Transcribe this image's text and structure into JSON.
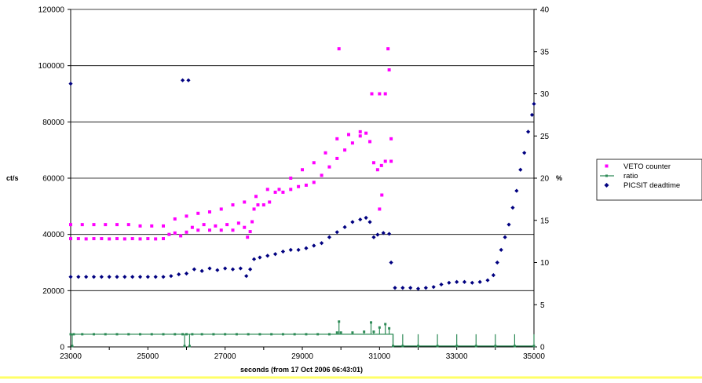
{
  "chart_data": {
    "type": "scatter",
    "title": "",
    "xlabel": "seconds (from 17 Oct 2006 06:43:01)",
    "ylabel_left": "ct/s",
    "ylabel_right": "%",
    "xlim": [
      23000,
      35000
    ],
    "ylim_left": [
      0,
      120000
    ],
    "ylim_right": [
      0,
      40
    ],
    "x_ticks": [
      23000,
      25000,
      27000,
      29000,
      31000,
      33000,
      35000
    ],
    "y_left_ticks": [
      0,
      20000,
      40000,
      60000,
      80000,
      100000,
      120000
    ],
    "y_right_ticks": [
      0,
      5,
      10,
      15,
      20,
      25,
      30,
      35,
      40
    ],
    "grid": "horizontal major gridlines",
    "legend_position": "right",
    "series": [
      {
        "name": "VETO counter",
        "axis": "left",
        "color": "#ff00ff",
        "marker": "square",
        "points": [
          [
            23000,
            38500
          ],
          [
            23200,
            38500
          ],
          [
            23400,
            38400
          ],
          [
            23600,
            38500
          ],
          [
            23800,
            38500
          ],
          [
            24000,
            38400
          ],
          [
            24200,
            38500
          ],
          [
            24400,
            38400
          ],
          [
            24600,
            38500
          ],
          [
            24800,
            38400
          ],
          [
            25000,
            38500
          ],
          [
            25200,
            38400
          ],
          [
            25400,
            38500
          ],
          [
            25550,
            40000
          ],
          [
            25700,
            40500
          ],
          [
            25850,
            39500
          ],
          [
            26000,
            40800
          ],
          [
            26150,
            42500
          ],
          [
            26300,
            41500
          ],
          [
            26450,
            43500
          ],
          [
            26600,
            41500
          ],
          [
            26750,
            43000
          ],
          [
            26900,
            41500
          ],
          [
            27050,
            43500
          ],
          [
            27200,
            41500
          ],
          [
            27350,
            44000
          ],
          [
            27500,
            42500
          ],
          [
            27580,
            39000
          ],
          [
            27650,
            41000
          ],
          [
            27700,
            44500
          ],
          [
            27750,
            49000
          ],
          [
            27850,
            50500
          ],
          [
            28000,
            50500
          ],
          [
            28150,
            51500
          ],
          [
            28300,
            55000
          ],
          [
            28500,
            55000
          ],
          [
            28700,
            56000
          ],
          [
            28900,
            57000
          ],
          [
            29100,
            57500
          ],
          [
            29300,
            58500
          ],
          [
            29500,
            61000
          ],
          [
            29700,
            64000
          ],
          [
            29900,
            67000
          ],
          [
            30100,
            70000
          ],
          [
            30300,
            72500
          ],
          [
            30500,
            75000
          ],
          [
            30650,
            76000
          ],
          [
            30750,
            73000
          ],
          [
            30850,
            65500
          ],
          [
            30950,
            63000
          ],
          [
            31050,
            64500
          ],
          [
            31150,
            66000
          ],
          [
            31300,
            66000
          ],
          [
            23000,
            43500
          ],
          [
            23300,
            43500
          ],
          [
            23600,
            43500
          ],
          [
            23900,
            43500
          ],
          [
            24200,
            43500
          ],
          [
            24500,
            43500
          ],
          [
            24800,
            43000
          ],
          [
            25100,
            43000
          ],
          [
            25400,
            43000
          ],
          [
            25700,
            45500
          ],
          [
            26000,
            46500
          ],
          [
            26300,
            47500
          ],
          [
            26600,
            48000
          ],
          [
            26900,
            49000
          ],
          [
            27200,
            50500
          ],
          [
            27500,
            51500
          ],
          [
            27800,
            53500
          ],
          [
            28100,
            56000
          ],
          [
            28400,
            56000
          ],
          [
            28700,
            60000
          ],
          [
            29000,
            63000
          ],
          [
            29300,
            65500
          ],
          [
            29600,
            69000
          ],
          [
            29900,
            74000
          ],
          [
            30200,
            75500
          ],
          [
            30500,
            76500
          ],
          [
            29950,
            106000
          ],
          [
            30800,
            90000
          ],
          [
            31000,
            90000
          ],
          [
            31150,
            90000
          ],
          [
            31220,
            106000
          ],
          [
            31250,
            98500
          ],
          [
            31300,
            74000
          ],
          [
            31000,
            49000
          ],
          [
            31060,
            54000
          ]
        ]
      },
      {
        "name": "ratio",
        "axis": "right",
        "color": "#2e8b57",
        "marker": "dash",
        "points": [
          [
            23000,
            1.5
          ],
          [
            23040,
            0.1
          ],
          [
            23080,
            1.5
          ],
          [
            23300,
            1.5
          ],
          [
            23600,
            1.5
          ],
          [
            23900,
            1.5
          ],
          [
            24200,
            1.5
          ],
          [
            24500,
            1.5
          ],
          [
            24800,
            1.5
          ],
          [
            25100,
            1.5
          ],
          [
            25400,
            1.5
          ],
          [
            25700,
            1.5
          ],
          [
            25900,
            1.5
          ],
          [
            25950,
            0.1
          ],
          [
            26000,
            1.5
          ],
          [
            26080,
            0.1
          ],
          [
            26150,
            1.5
          ],
          [
            26400,
            1.5
          ],
          [
            26700,
            1.5
          ],
          [
            27000,
            1.5
          ],
          [
            27300,
            1.5
          ],
          [
            27600,
            1.5
          ],
          [
            27900,
            1.5
          ],
          [
            28200,
            1.5
          ],
          [
            28500,
            1.5
          ],
          [
            28800,
            1.5
          ],
          [
            29100,
            1.5
          ],
          [
            29400,
            1.5
          ],
          [
            29700,
            1.5
          ],
          [
            29900,
            1.7
          ],
          [
            29950,
            3.0
          ],
          [
            30000,
            1.7
          ],
          [
            30300,
            1.7
          ],
          [
            30600,
            1.8
          ],
          [
            30780,
            2.9
          ],
          [
            30850,
            1.8
          ],
          [
            31000,
            2.3
          ],
          [
            31150,
            2.7
          ],
          [
            31250,
            2.2
          ],
          [
            31350,
            0.1
          ],
          [
            31600,
            0.1
          ],
          [
            32000,
            0.1
          ],
          [
            32500,
            0.1
          ],
          [
            33000,
            0.1
          ],
          [
            33500,
            0.1
          ],
          [
            34000,
            0.1
          ],
          [
            34500,
            0.1
          ],
          [
            35000,
            0.1
          ]
        ]
      },
      {
        "name": "PICSIT deadtime",
        "axis": "right",
        "color": "#000080",
        "marker": "diamond",
        "points": [
          [
            23000,
            31.2
          ],
          [
            25900,
            31.6
          ],
          [
            26050,
            31.6
          ],
          [
            23000,
            8.3
          ],
          [
            23200,
            8.3
          ],
          [
            23400,
            8.3
          ],
          [
            23600,
            8.3
          ],
          [
            23800,
            8.3
          ],
          [
            24000,
            8.3
          ],
          [
            24200,
            8.3
          ],
          [
            24400,
            8.3
          ],
          [
            24600,
            8.3
          ],
          [
            24800,
            8.3
          ],
          [
            25000,
            8.3
          ],
          [
            25200,
            8.3
          ],
          [
            25400,
            8.3
          ],
          [
            25600,
            8.4
          ],
          [
            25800,
            8.6
          ],
          [
            26000,
            8.7
          ],
          [
            26200,
            9.2
          ],
          [
            26400,
            9.0
          ],
          [
            26600,
            9.3
          ],
          [
            26800,
            9.1
          ],
          [
            27000,
            9.3
          ],
          [
            27200,
            9.2
          ],
          [
            27400,
            9.3
          ],
          [
            27550,
            8.4
          ],
          [
            27650,
            9.2
          ],
          [
            27750,
            10.4
          ],
          [
            27900,
            10.6
          ],
          [
            28100,
            10.8
          ],
          [
            28300,
            11.0
          ],
          [
            28500,
            11.3
          ],
          [
            28700,
            11.5
          ],
          [
            28900,
            11.5
          ],
          [
            29100,
            11.7
          ],
          [
            29300,
            12.0
          ],
          [
            29500,
            12.3
          ],
          [
            29700,
            13.0
          ],
          [
            29900,
            13.6
          ],
          [
            30100,
            14.2
          ],
          [
            30300,
            14.8
          ],
          [
            30500,
            15.1
          ],
          [
            30650,
            15.3
          ],
          [
            30750,
            14.8
          ],
          [
            30850,
            13.0
          ],
          [
            30950,
            13.3
          ],
          [
            31100,
            13.5
          ],
          [
            31250,
            13.4
          ],
          [
            31300,
            10.0
          ],
          [
            31400,
            7.0
          ],
          [
            31600,
            7.0
          ],
          [
            31800,
            7.0
          ],
          [
            32000,
            6.9
          ],
          [
            32200,
            7.0
          ],
          [
            32400,
            7.1
          ],
          [
            32600,
            7.4
          ],
          [
            32800,
            7.6
          ],
          [
            33000,
            7.7
          ],
          [
            33200,
            7.7
          ],
          [
            33400,
            7.6
          ],
          [
            33600,
            7.7
          ],
          [
            33800,
            7.9
          ],
          [
            33950,
            8.5
          ],
          [
            34050,
            10.0
          ],
          [
            34150,
            11.5
          ],
          [
            34250,
            13.0
          ],
          [
            34350,
            14.5
          ],
          [
            34450,
            16.5
          ],
          [
            34550,
            18.5
          ],
          [
            34650,
            21.0
          ],
          [
            34750,
            23.0
          ],
          [
            34850,
            25.5
          ],
          [
            34950,
            27.5
          ],
          [
            35000,
            28.8
          ]
        ]
      }
    ],
    "line_series": {
      "name": "ratio",
      "x": [
        23000,
        31350,
        31350,
        35000
      ],
      "y": [
        1.5,
        1.5,
        0.1,
        0.1
      ]
    }
  }
}
